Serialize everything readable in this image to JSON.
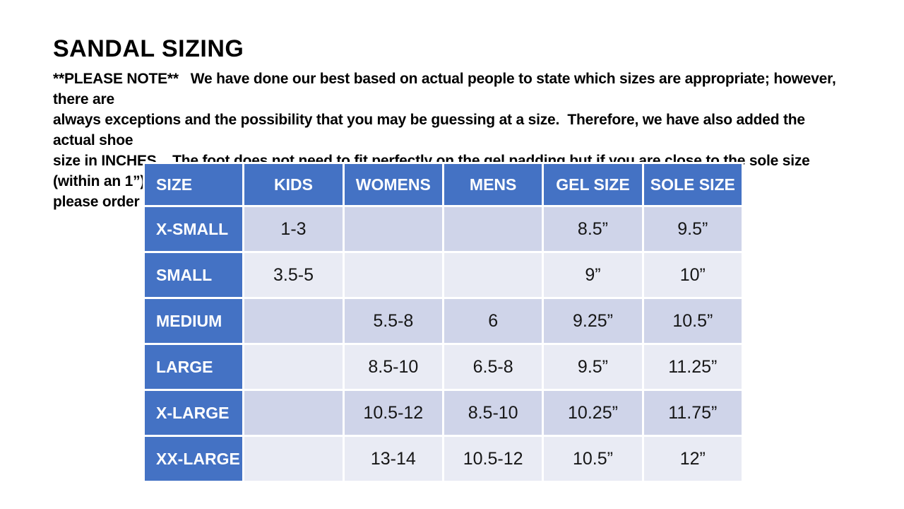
{
  "page": {
    "title": "SANDAL SIZING"
  },
  "note": {
    "lines": [
      "**PLEASE NOTE**   We have done our best based on actual people to state which sizes are appropriate; however, there are",
      "always exceptions and the possibility that you may be guessing at a size.  Therefore, we have also added the actual shoe",
      "size in INCHES.   The foot does not need to fit perfectly on the gel padding but if you are close to the sole size (within an 1”),",
      "please order ONE size larger.   The strap is adjustable so you’ll always be able to pull it tight."
    ]
  },
  "table": {
    "columns": [
      "SIZE",
      "KIDS",
      "WOMENS",
      "MENS",
      "GEL SIZE",
      "SOLE SIZE"
    ],
    "rows": [
      [
        "X-SMALL",
        "1-3",
        "",
        "",
        "8.5”",
        "9.5”"
      ],
      [
        "SMALL",
        "3.5-5",
        "",
        "",
        "9”",
        "10”"
      ],
      [
        "MEDIUM",
        "",
        "5.5-8",
        "6",
        "9.25”",
        "10.5”"
      ],
      [
        "LARGE",
        "",
        "8.5-10",
        "6.5-8",
        "9.5”",
        "11.25”"
      ],
      [
        "X-LARGE",
        "",
        "10.5-12",
        "8.5-10",
        "10.25”",
        "11.75”"
      ],
      [
        "XX-LARGE",
        "",
        "13-14",
        "10.5-12",
        "10.5”",
        "12”"
      ]
    ]
  },
  "colors": {
    "header_blue": "#4472C4",
    "band_dark": "#CFD4E9",
    "band_light": "#E9EBF4",
    "header_text": "#FFFFFF",
    "body_text": "#161616"
  }
}
